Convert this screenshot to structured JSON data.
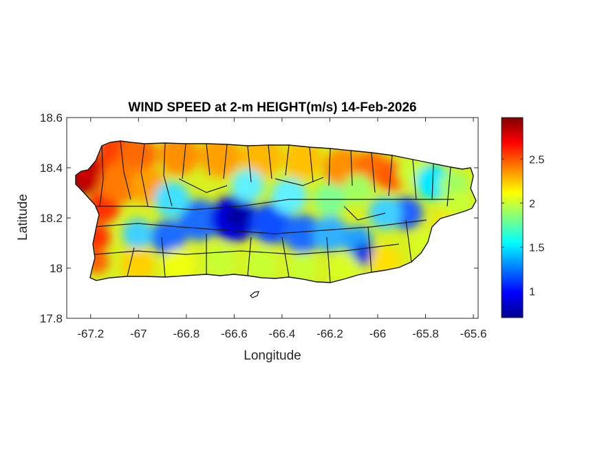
{
  "chart_data": {
    "type": "heatmap",
    "title": "WIND SPEED at 2-m HEIGHT(m/s) 14-Feb-2026",
    "xlabel": "Longitude",
    "ylabel": "Latitude",
    "xlim": [
      -67.3,
      -65.58
    ],
    "ylim": [
      17.8,
      18.6
    ],
    "xticks": [
      -67.2,
      -67,
      -66.8,
      -66.6,
      -66.4,
      -66.2,
      -66,
      -65.8,
      -65.6
    ],
    "xtick_labels": [
      "-67.2",
      "-67",
      "-66.8",
      "-66.6",
      "-66.4",
      "-66.2",
      "-66",
      "-65.8",
      "-65.6"
    ],
    "yticks": [
      17.8,
      18,
      18.2,
      18.4,
      18.6
    ],
    "ytick_labels": [
      "17.8",
      "18",
      "18.2",
      "18.4",
      "18.6"
    ],
    "colormap": "jet",
    "colorbar": {
      "range": [
        0.7,
        2.97
      ],
      "ticks": [
        1,
        1.5,
        2,
        2.5
      ],
      "tick_labels": [
        "1",
        "1.5",
        "2",
        "2.5"
      ]
    },
    "field_description": "Wind speed over Puerto Rico; highest (~2.5-2.97 m/s) along the northwest and west coast, high (~2.3-2.6) along the north coast, lowest (~0.8-1.3) over the central interior mountains and southeast interior, ~1.8-2.1 along the south coast."
  }
}
